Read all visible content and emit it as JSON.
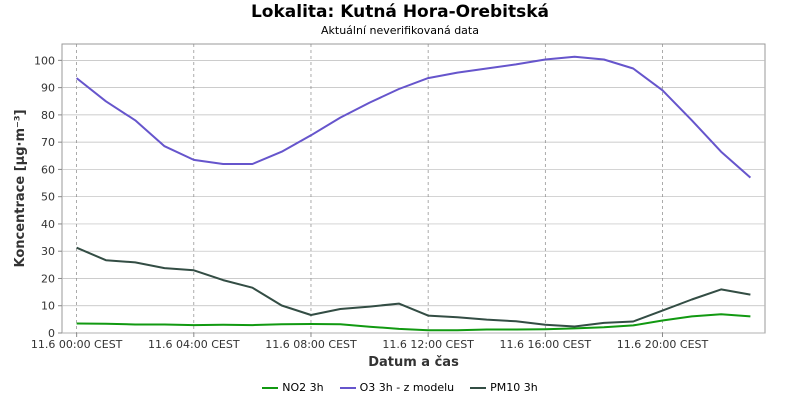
{
  "chart_data": {
    "type": "line",
    "title": "Lokalita: Kutná Hora-Orebitská",
    "subtitle": "Aktuální neverifikovaná data",
    "xlabel": "Datum a čas",
    "ylabel": "Koncentrace [µg·m⁻³]",
    "ylim": [
      0,
      106
    ],
    "yticks": [
      0,
      10,
      20,
      30,
      40,
      50,
      60,
      70,
      80,
      90,
      100
    ],
    "x_hours": [
      0,
      2,
      4,
      6,
      8,
      10,
      12,
      14,
      16,
      18,
      20,
      22,
      24,
      26,
      28,
      30,
      32,
      34,
      36,
      38,
      40,
      42,
      44,
      46
    ],
    "xlim_hours": [
      -1,
      47
    ],
    "xticks": [
      {
        "hour": 0,
        "label": "11.6 00:00 CEST"
      },
      {
        "hour": 8,
        "label": "11.6 04:00 CEST"
      },
      {
        "hour": 16,
        "label": "11.6 08:00 CEST"
      },
      {
        "hour": 24,
        "label": "11.6 12:00 CEST"
      },
      {
        "hour": 32,
        "label": "11.6 16:00 CEST"
      },
      {
        "hour": 40,
        "label": "11.6 20:00 CEST"
      }
    ],
    "grid": true,
    "legend_position": "bottom",
    "series": [
      {
        "name": "NO2 3h",
        "color": "#119911",
        "values": [
          3.5,
          3.4,
          3.1,
          3.1,
          2.9,
          3.0,
          2.9,
          3.2,
          3.3,
          3.2,
          2.3,
          1.5,
          1.0,
          1.0,
          1.3,
          1.3,
          1.4,
          1.7,
          2.1,
          2.8,
          4.6,
          6.1,
          6.9,
          6.1
        ]
      },
      {
        "name": "O3 3h - z modelu",
        "color": "#6655cc",
        "values": [
          93.5,
          85,
          78,
          68.5,
          63.5,
          62,
          62,
          66.5,
          72.5,
          79,
          84.5,
          89.5,
          93.5,
          95.5,
          97,
          98.5,
          100.3,
          101.3,
          100.3,
          97,
          89,
          78,
          66.5,
          57
        ]
      },
      {
        "name": "PM10 3h",
        "color": "#334d44",
        "values": [
          31.3,
          26.7,
          25.9,
          23.8,
          23.0,
          19.4,
          16.6,
          10.1,
          6.6,
          8.8,
          9.7,
          10.8,
          6.4,
          5.8,
          4.9,
          4.3,
          3.0,
          2.4,
          3.7,
          4.2,
          8.2,
          12.3,
          16.0,
          14.1
        ]
      }
    ]
  }
}
